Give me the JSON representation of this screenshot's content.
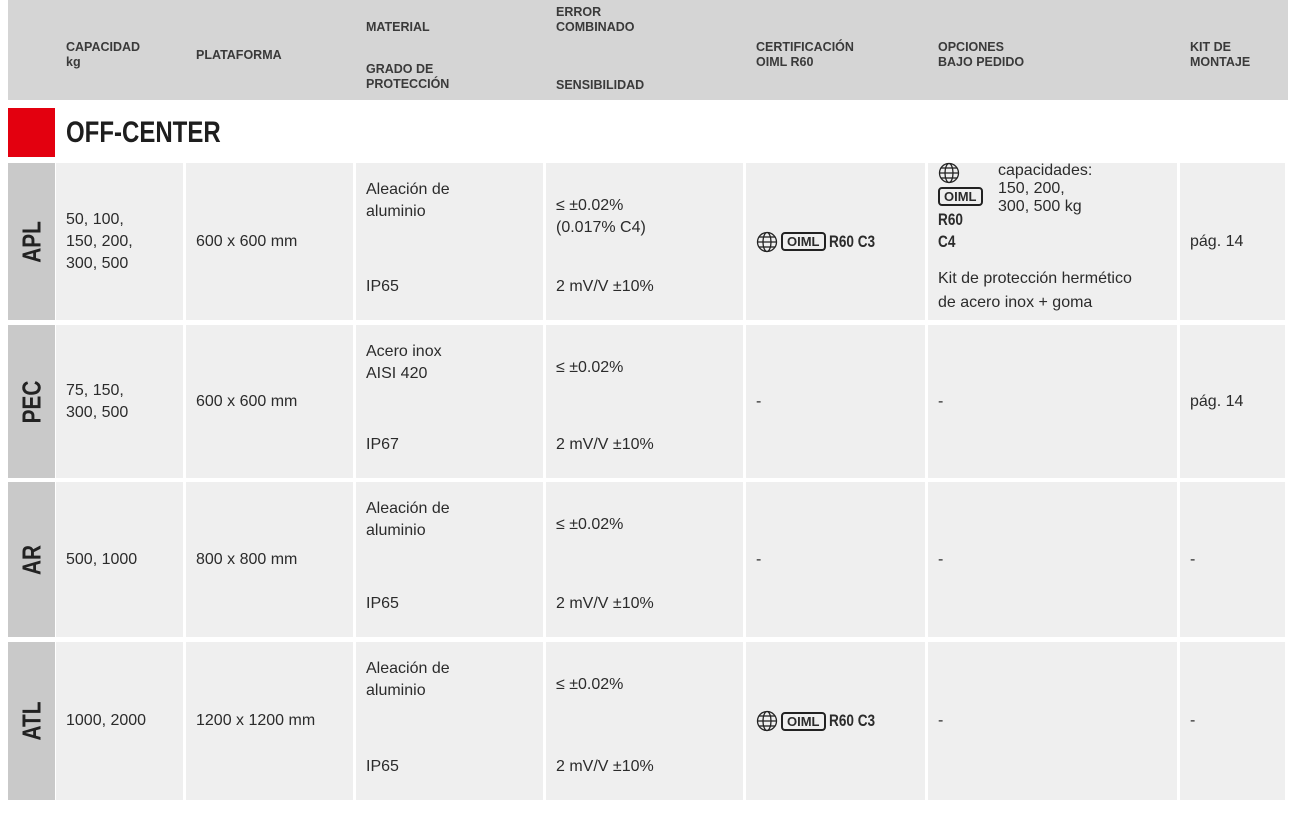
{
  "header": {
    "columns": [
      {
        "top": [
          "CAPACIDAD",
          "kg"
        ]
      },
      {
        "top": [
          "PLATAFORMA"
        ]
      },
      {
        "top": [
          "MATERIAL"
        ],
        "bottom": [
          "GRADO DE",
          "PROTECCIÓN"
        ]
      },
      {
        "top": [
          "ERROR",
          "COMBINADO"
        ],
        "bottom": [
          "SENSIBILIDAD"
        ]
      },
      {
        "top": [
          "CERTIFICACIÓN",
          "OIML R60"
        ]
      },
      {
        "top": [
          "OPCIONES",
          "BAJO PEDIDO"
        ]
      },
      {
        "top": [
          "KIT DE",
          "MONTAJE"
        ]
      }
    ]
  },
  "section": "OFF-CENTER",
  "rows": [
    {
      "name": "APL",
      "capacity": [
        "50, 100,",
        "150, 200,",
        "300, 500"
      ],
      "platform": "600 x 600 mm",
      "material": [
        "Aleación de",
        "aluminio"
      ],
      "protection": "IP65",
      "error": [
        "≤ ±0.02%",
        "(0.017% C4)"
      ],
      "sensitivity": "2 mV/V ±10%",
      "certification": {
        "logo": "OIML",
        "class": "R60 C3"
      },
      "options": {
        "certification": {
          "logo": "OIML",
          "class": "R60 C4"
        },
        "note": [
          "capacidades:",
          "150, 200,",
          "300, 500 kg"
        ],
        "extra": [
          "Kit de protección hermético",
          "de acero inox + goma"
        ]
      },
      "kit": "pág. 14"
    },
    {
      "name": "PEC",
      "capacity": [
        "75, 150,",
        "300, 500"
      ],
      "platform": "600 x 600 mm",
      "material": [
        "Acero inox",
        "AISI 420"
      ],
      "protection": "IP67",
      "error": [
        "≤ ±0.02%"
      ],
      "sensitivity": "2 mV/V ±10%",
      "certification": "-",
      "options": "-",
      "kit": "pág. 14"
    },
    {
      "name": "AR",
      "capacity": [
        "500, 1000"
      ],
      "platform": "800 x 800 mm",
      "material": [
        "Aleación de",
        "aluminio"
      ],
      "protection": "IP65",
      "error": [
        "≤ ±0.02%"
      ],
      "sensitivity": "2 mV/V ±10%",
      "certification": "-",
      "options": "-",
      "kit": "-"
    },
    {
      "name": "ATL",
      "capacity": [
        "1000, 2000"
      ],
      "platform": "1200 x 1200 mm",
      "material": [
        "Aleación de",
        "aluminio"
      ],
      "protection": "IP65",
      "error": [
        "≤ ±0.02%"
      ],
      "sensitivity": "2 mV/V ±10%",
      "certification": {
        "logo": "OIML",
        "class": "R60 C3"
      },
      "options": "-",
      "kit": "-"
    }
  ]
}
